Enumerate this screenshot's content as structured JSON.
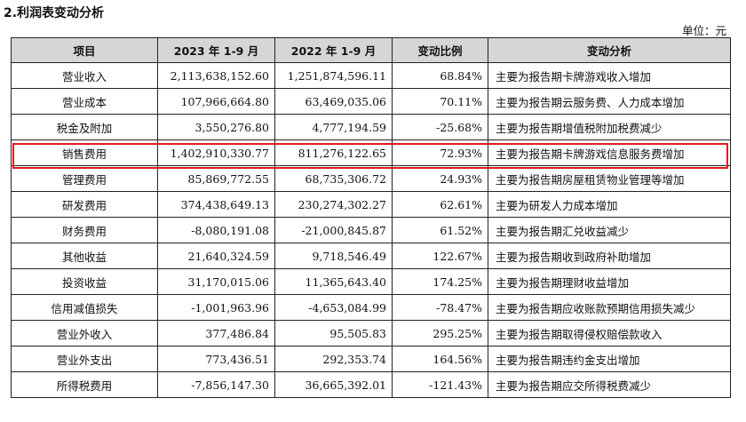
{
  "title": "2.利润表变动分析",
  "unit": "单位：元",
  "table": {
    "headers": [
      "项目",
      "2023 年 1-9 月",
      "2022 年 1-9 月",
      "变动比例",
      "变动分析"
    ],
    "rows": [
      [
        "营业收入",
        "2,113,638,152.60",
        "1,251,874,596.11",
        "68.84%",
        "主要为报告期卡牌游戏收入增加"
      ],
      [
        "营业成本",
        "107,966,664.80",
        "63,469,035.06",
        "70.11%",
        "主要为报告期云服务费、人力成本增加"
      ],
      [
        "税金及附加",
        "3,550,276.80",
        "4,777,194.59",
        "-25.68%",
        "主要为报告期增值税附加税费减少"
      ],
      [
        "销售费用",
        "1,402,910,330.77",
        "811,276,122.65",
        "72.93%",
        "主要为报告期卡牌游戏信息服务费增加"
      ],
      [
        "管理费用",
        "85,869,772.55",
        "68,735,306.72",
        "24.93%",
        "主要为报告期房屋租赁物业管理等增加"
      ],
      [
        "研发费用",
        "374,438,649.13",
        "230,274,302.27",
        "62.61%",
        "主要为研发人力成本增加"
      ],
      [
        "财务费用",
        "-8,080,191.08",
        "-21,000,845.87",
        "61.52%",
        "主要为报告期汇兑收益减少"
      ],
      [
        "其他收益",
        "21,640,324.59",
        "9,718,546.49",
        "122.67%",
        "主要为报告期收到政府补助增加"
      ],
      [
        "投资收益",
        "31,170,015.06",
        "11,365,643.40",
        "174.25%",
        "主要为报告期理财收益增加"
      ],
      [
        "信用减值损失",
        "-1,001,963.96",
        "-4,653,084.99",
        "-78.47%",
        "主要为报告期应收账款预期信用损失减少"
      ],
      [
        "营业外收入",
        "377,486.84",
        "95,505.83",
        "295.25%",
        "主要为报告期取得侵权赔偿款收入"
      ],
      [
        "营业外支出",
        "773,436.51",
        "292,353.74",
        "164.56%",
        "主要为报告期违约金支出增加"
      ],
      [
        "所得税费用",
        "-7,856,147.30",
        "36,665,392.01",
        "-121.43%",
        "主要为报告期应交所得税费减少"
      ]
    ]
  },
  "highlight_color": "#e0191d"
}
